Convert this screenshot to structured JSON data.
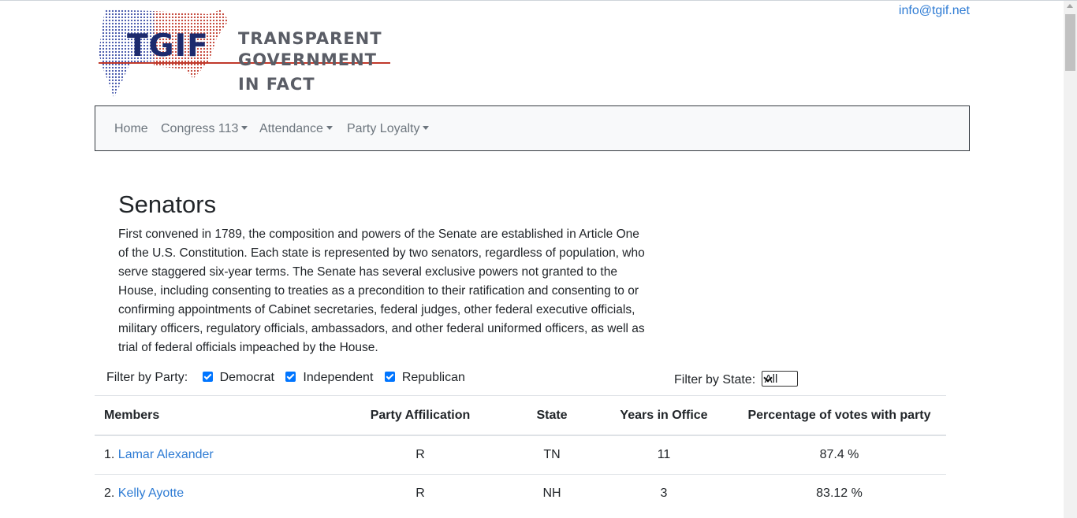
{
  "header": {
    "logo": {
      "short": "TGIF",
      "line1": "TRANSPARENT",
      "line2": "GOVERNMENT",
      "line3": "IN FACT"
    },
    "email": "info@tgif.net"
  },
  "nav": {
    "home": "Home",
    "congress": "Congress 113",
    "attendance": "Attendance",
    "loyalty": "Party Loyalty"
  },
  "page": {
    "title": "Senators",
    "intro": "First convened in 1789, the composition and powers of the Senate are established in Article One of the U.S. Constitution. Each state is represented by two senators, regardless of population, who serve staggered six-year terms. The Senate has several exclusive powers not granted to the House, including consenting to treaties as a precondition to their ratification and consenting to or confirming appointments of Cabinet secretaries, federal judges, other federal executive officials, military officers, regulatory officials, ambassadors, and other federal uniformed officers, as well as trial of federal officials impeached by the House."
  },
  "filters": {
    "party_label": "Filter by Party:",
    "parties": [
      "Democrat",
      "Independent",
      "Republican"
    ],
    "state_label": "Filter by State:",
    "state_value": "All"
  },
  "table": {
    "headers": [
      "Members",
      "Party Affilication",
      "State",
      "Years in Office",
      "Percentage of votes with party"
    ],
    "rows": [
      {
        "num": "1.",
        "name": "Lamar Alexander",
        "party": "R",
        "state": "TN",
        "years": "11",
        "pct": "87.4 %"
      },
      {
        "num": "2.",
        "name": "Kelly Ayotte",
        "party": "R",
        "state": "NH",
        "years": "3",
        "pct": "83.12 %"
      }
    ]
  },
  "colors": {
    "accent_red": "#c0392b",
    "accent_blue": "#1d2b6e",
    "link": "#2f7cd4"
  }
}
